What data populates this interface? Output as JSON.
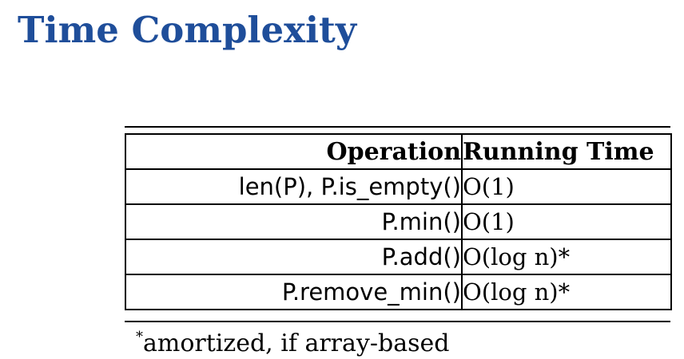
{
  "title": "Time Complexity",
  "table": {
    "headers": {
      "operation": "Operation",
      "running_time": "Running Time"
    },
    "rows": [
      {
        "operation": "len(P), P.is_empty()",
        "running_time": "O(1)"
      },
      {
        "operation": "P.min()",
        "running_time": "O(1)"
      },
      {
        "operation": "P.add()",
        "running_time": "O(log n)*"
      },
      {
        "operation": "P.remove_min()",
        "running_time": "O(log n)*"
      }
    ]
  },
  "footnote": {
    "mark": "*",
    "text": "amortized, if array-based"
  },
  "colors": {
    "title": "#1f4e9a",
    "text": "#000000",
    "background": "#ffffff"
  }
}
